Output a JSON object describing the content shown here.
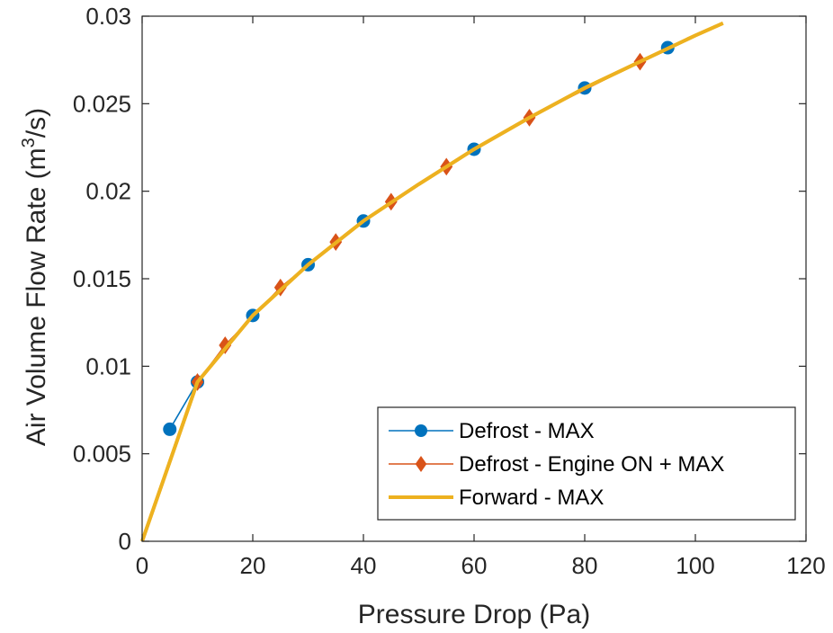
{
  "chart_data": {
    "type": "line",
    "xlabel": "Pressure Drop (Pa)",
    "ylabel": "Air Volume Flow Rate (m³/s)",
    "ylabel_parts": {
      "before": "Air Volume Flow Rate (m",
      "sup": "3",
      "after": "/s)"
    },
    "xlim": [
      0,
      120
    ],
    "ylim": [
      0,
      0.03
    ],
    "xticks": [
      "0",
      "20",
      "40",
      "60",
      "80",
      "100",
      "120"
    ],
    "yticks": [
      "0",
      "0.005",
      "0.01",
      "0.015",
      "0.02",
      "0.025",
      "0.03"
    ],
    "grid": false,
    "legend_position": "bottom-right",
    "series": [
      {
        "name": "Defrost - MAX",
        "color": "#0072BD",
        "marker": "circle",
        "x": [
          5,
          10,
          20,
          30,
          40,
          60,
          80,
          95
        ],
        "y": [
          0.0064,
          0.0091,
          0.0129,
          0.0158,
          0.0183,
          0.0224,
          0.0259,
          0.0282
        ]
      },
      {
        "name": "Defrost - Engine ON + MAX",
        "color": "#D95319",
        "marker": "diamond",
        "x": [
          10,
          15,
          25,
          35,
          45,
          55,
          70,
          90
        ],
        "y": [
          0.0091,
          0.0112,
          0.0145,
          0.0171,
          0.0194,
          0.0214,
          0.0242,
          0.0274
        ]
      },
      {
        "name": "Forward - MAX",
        "color": "#EDB120",
        "marker": "none",
        "x": [
          0,
          10,
          20,
          30,
          40,
          50,
          60,
          70,
          80,
          90,
          100,
          105
        ],
        "y": [
          0,
          0.0091,
          0.0129,
          0.0158,
          0.0183,
          0.0204,
          0.0224,
          0.0242,
          0.0259,
          0.0274,
          0.0289,
          0.0296
        ]
      }
    ]
  }
}
